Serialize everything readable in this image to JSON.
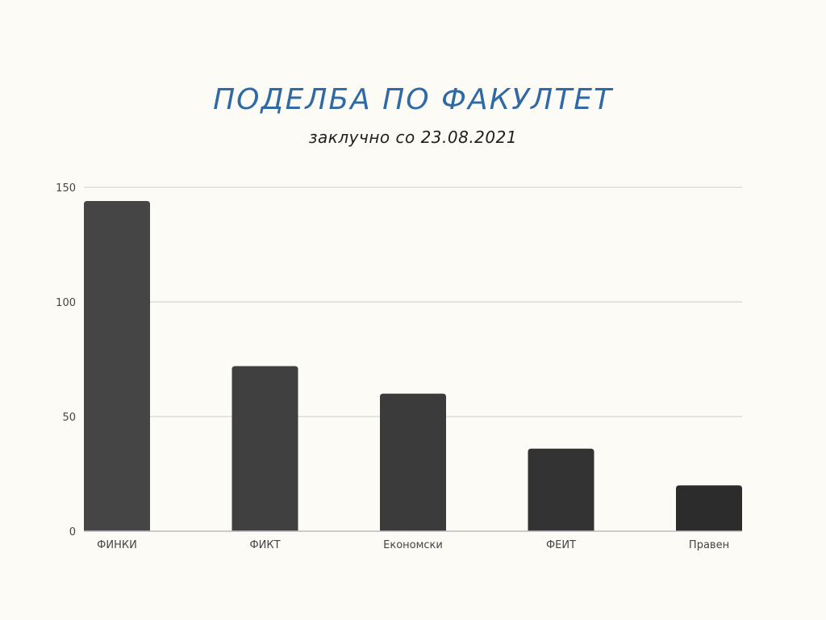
{
  "chart_data": {
    "type": "bar",
    "title": "ПОДЕЛБА ПО ФАКУЛТЕТ",
    "subtitle": "заклучно со 23.08.2021",
    "categories": [
      "ФИНКИ",
      "ФИКТ",
      "Економски",
      "ФЕИТ",
      "Правен"
    ],
    "values": [
      144,
      72,
      60,
      36,
      20
    ],
    "yticks": [
      0,
      50,
      100,
      150
    ],
    "ylim": [
      0,
      150
    ],
    "xlabel": "",
    "ylabel": "",
    "grid": true,
    "bar_colors": [
      "#454545",
      "#404040",
      "#3b3b3b",
      "#333333",
      "#2c2c2c"
    ],
    "grid_color": "#dcdcdc",
    "axis_color": "#bdbdbd",
    "title_color": "#2f6aa6",
    "background": "#fdfbf6"
  }
}
